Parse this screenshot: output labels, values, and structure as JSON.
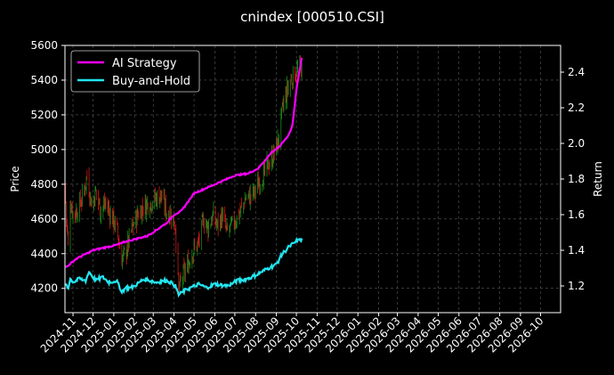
{
  "chart_data": {
    "type": "line",
    "title": "cnindex [000510.CSI]",
    "ylabel_left": "Price",
    "ylabel_right": "Return",
    "xlabel": "",
    "ylim_left": [
      4060,
      5600
    ],
    "ylim_right": [
      1.05,
      2.55
    ],
    "yticks_left": [
      "4200",
      "4400",
      "4600",
      "4800",
      "5000",
      "5200",
      "5400",
      "5600"
    ],
    "yticks_right": [
      "1.2",
      "1.4",
      "1.6",
      "1.8",
      "2.0",
      "2.2",
      "2.4"
    ],
    "xticks": [
      "2024-11",
      "2024-12",
      "2025-01",
      "2025-02",
      "2025-03",
      "2025-04",
      "2025-05",
      "2025-06",
      "2025-07",
      "2025-08",
      "2025-09",
      "2025-10",
      "2025-11",
      "2025-12",
      "2026-01",
      "2026-02",
      "2026-03",
      "2026-04",
      "2026-05",
      "2026-06",
      "2026-07",
      "2026-08",
      "2026-09",
      "2026-10"
    ],
    "xlim": [
      "2024-10-20",
      "2026-10-31"
    ],
    "grid": true,
    "legend_position": "top-left",
    "legend_entries": [
      "AI Strategy",
      "Buy-and-Hold"
    ],
    "colors": {
      "ai_strategy": "#ff00ff",
      "buy_hold": "#22e5f0",
      "up_candle": "#1a8f1a",
      "down_candle": "#d01a1a",
      "background": "#000000",
      "grid": "#666666"
    },
    "price_anchors": {
      "dates": [
        "2024-10-20",
        "2024-10-22",
        "2024-10-25",
        "2024-10-28",
        "2024-11-02",
        "2024-11-08",
        "2024-11-15",
        "2024-11-22",
        "2024-11-29",
        "2024-12-05",
        "2024-12-12",
        "2024-12-20",
        "2024-12-28",
        "2025-01-05",
        "2025-01-13",
        "2025-01-20",
        "2025-01-27",
        "2025-02-05",
        "2025-02-12",
        "2025-02-20",
        "2025-02-27",
        "2025-03-05",
        "2025-03-12",
        "2025-03-20",
        "2025-03-27",
        "2025-04-03",
        "2025-04-08",
        "2025-04-12",
        "2025-04-20",
        "2025-04-28",
        "2025-05-08",
        "2025-05-15",
        "2025-05-22",
        "2025-05-29",
        "2025-06-05",
        "2025-06-12",
        "2025-06-19",
        "2025-06-26",
        "2025-07-03",
        "2025-07-10",
        "2025-07-17",
        "2025-07-24",
        "2025-07-31",
        "2025-08-07",
        "2025-08-14",
        "2025-08-21",
        "2025-08-28",
        "2025-09-04",
        "2025-09-11",
        "2025-09-18",
        "2025-09-25",
        "2025-10-01",
        "2025-10-09"
      ],
      "values": [
        4800,
        4600,
        4450,
        4700,
        4620,
        4660,
        4720,
        4850,
        4680,
        4760,
        4650,
        4690,
        4620,
        4550,
        4370,
        4420,
        4530,
        4620,
        4660,
        4690,
        4700,
        4720,
        4740,
        4650,
        4630,
        4560,
        4180,
        4250,
        4320,
        4410,
        4460,
        4600,
        4550,
        4620,
        4560,
        4620,
        4520,
        4560,
        4600,
        4650,
        4720,
        4730,
        4760,
        4820,
        4860,
        4920,
        4970,
        5050,
        5250,
        5350,
        5420,
        5450,
        5470
      ]
    },
    "ai_strategy_anchors": {
      "dates": [
        "2024-10-20",
        "2024-11-05",
        "2024-12-01",
        "2025-01-05",
        "2025-01-20",
        "2025-02-20",
        "2025-03-20",
        "2025-04-01",
        "2025-04-12",
        "2025-05-01",
        "2025-06-01",
        "2025-07-01",
        "2025-07-20",
        "2025-08-05",
        "2025-08-25",
        "2025-09-05",
        "2025-09-20",
        "2025-09-25",
        "2025-10-01",
        "2025-10-09"
      ],
      "values": [
        1.3,
        1.35,
        1.4,
        1.43,
        1.45,
        1.48,
        1.55,
        1.6,
        1.62,
        1.72,
        1.77,
        1.82,
        1.83,
        1.86,
        1.95,
        1.98,
        2.05,
        2.1,
        2.3,
        2.48
      ]
    },
    "buy_hold_anchors": {
      "dates": [
        "2024-10-20",
        "2024-10-25",
        "2024-10-28",
        "2024-11-02",
        "2024-11-10",
        "2024-11-20",
        "2024-11-25",
        "2024-12-05",
        "2024-12-15",
        "2024-12-25",
        "2025-01-05",
        "2025-01-13",
        "2025-01-20",
        "2025-01-27",
        "2025-02-05",
        "2025-02-15",
        "2025-03-05",
        "2025-03-20",
        "2025-03-27",
        "2025-04-03",
        "2025-04-08",
        "2025-04-12",
        "2025-04-20",
        "2025-05-08",
        "2025-05-20",
        "2025-06-01",
        "2025-06-20",
        "2025-07-05",
        "2025-07-20",
        "2025-08-01",
        "2025-08-20",
        "2025-09-01",
        "2025-09-10",
        "2025-09-20",
        "2025-10-01",
        "2025-10-09"
      ],
      "values": [
        1.22,
        1.19,
        1.24,
        1.22,
        1.24,
        1.23,
        1.28,
        1.23,
        1.25,
        1.22,
        1.23,
        1.17,
        1.19,
        1.19,
        1.21,
        1.24,
        1.22,
        1.23,
        1.22,
        1.2,
        1.15,
        1.16,
        1.18,
        1.21,
        1.19,
        1.21,
        1.2,
        1.23,
        1.24,
        1.26,
        1.3,
        1.32,
        1.38,
        1.42,
        1.45,
        1.46
      ]
    }
  }
}
